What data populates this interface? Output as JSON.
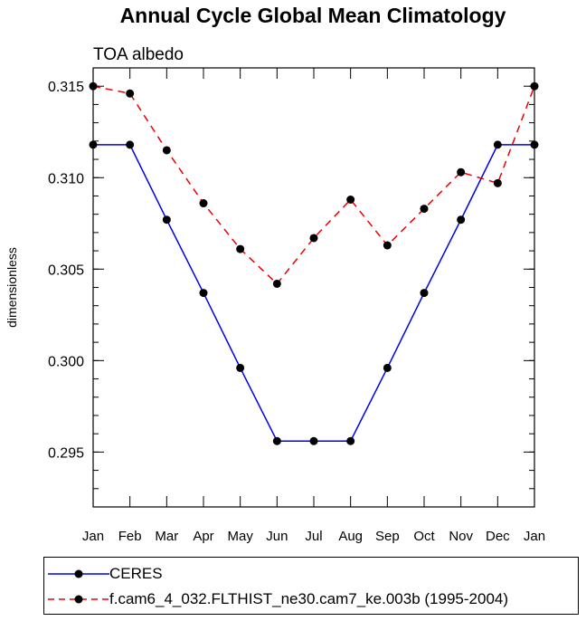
{
  "title": "Annual Cycle Global Mean Climatology",
  "chart_data": {
    "type": "line",
    "subtitle": "TOA albedo",
    "xlabel": "",
    "ylabel": "dimensionless",
    "categories": [
      "Jan",
      "Feb",
      "Mar",
      "Apr",
      "May",
      "Jun",
      "Jul",
      "Aug",
      "Sep",
      "Oct",
      "Nov",
      "Dec",
      "Jan"
    ],
    "ylim": [
      0.292,
      0.316
    ],
    "yticks": [
      0.295,
      0.3,
      0.305,
      0.31,
      0.315
    ],
    "ytick_labels": [
      "0.295",
      "0.300",
      "0.305",
      "0.310",
      "0.315"
    ],
    "series": [
      {
        "name": "CERES",
        "color": "#0000ee",
        "dash": "solid",
        "values": [
          0.3118,
          0.3118,
          0.3077,
          0.3037,
          0.2996,
          0.2956,
          0.2956,
          0.2956,
          0.2996,
          0.3037,
          0.3077,
          0.3118,
          0.3118
        ]
      },
      {
        "name": "f.cam6_4_032.FLTHIST_ne30.cam7_ke.003b (1995-2004)",
        "color": "#ee0000",
        "dash": "dashed",
        "values": [
          0.315,
          0.3146,
          0.3115,
          0.3086,
          0.3061,
          0.3042,
          0.3067,
          0.3088,
          0.3063,
          0.3083,
          0.3103,
          0.3097,
          0.315
        ]
      }
    ],
    "legend_position": "bottom"
  }
}
